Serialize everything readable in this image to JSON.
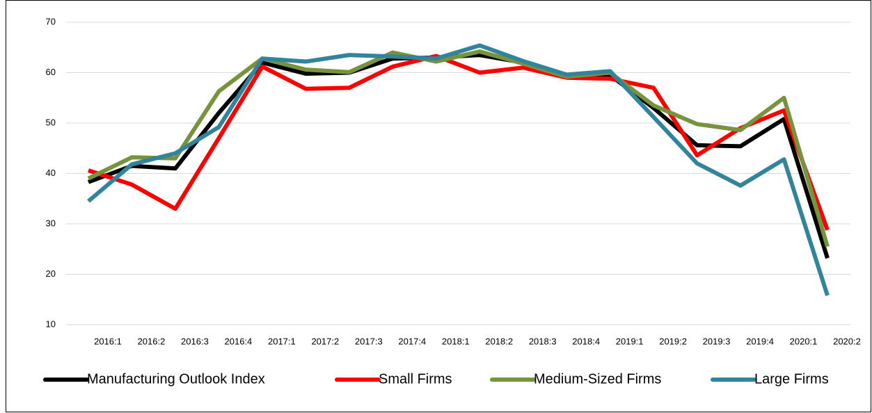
{
  "chart_data": {
    "type": "line",
    "categories": [
      "2016:1",
      "2016:2",
      "2016:3",
      "2016:4",
      "2017:1",
      "2017:2",
      "2017:3",
      "2017:4",
      "2018:1",
      "2018:2",
      "2018:3",
      "2018:4",
      "2019:1",
      "2019:2",
      "2019:3",
      "2019:4",
      "2020:1",
      "2020:2"
    ],
    "series": [
      {
        "name": "Manufacturing Outlook Index",
        "color": "#000000",
        "values": [
          38.3,
          41.5,
          41,
          52,
          62,
          59.8,
          60,
          62.8,
          63,
          63.5,
          62,
          59.2,
          59.5,
          53,
          45.6,
          45.4,
          50.8,
          23.2
        ]
      },
      {
        "name": "Small Firms",
        "color": "#ff0000",
        "values": [
          40.6,
          37.8,
          33,
          47,
          61.2,
          56.8,
          57,
          61.2,
          63.3,
          60,
          61,
          59,
          58.8,
          57,
          43.6,
          49,
          52.5,
          28.8
        ]
      },
      {
        "name": "Medium-Sized Firms",
        "color": "#77933c",
        "values": [
          39,
          43.2,
          43,
          56.3,
          62.8,
          60.6,
          60.1,
          64,
          62.2,
          64.2,
          61.8,
          59.2,
          60,
          53.5,
          49.8,
          48.6,
          55,
          25.5
        ]
      },
      {
        "name": "Large Firms",
        "color": "#31849b",
        "values": [
          34.5,
          41.8,
          44,
          49.2,
          62.8,
          62.2,
          63.5,
          63.2,
          62.8,
          65.4,
          62.3,
          59.6,
          60.3,
          51.2,
          42,
          37.6,
          42.8,
          15.8
        ]
      }
    ],
    "ylim": [
      10,
      70
    ],
    "yticks": [
      10,
      20,
      30,
      40,
      50,
      60,
      70
    ],
    "grid": true,
    "legend": "bottom"
  }
}
